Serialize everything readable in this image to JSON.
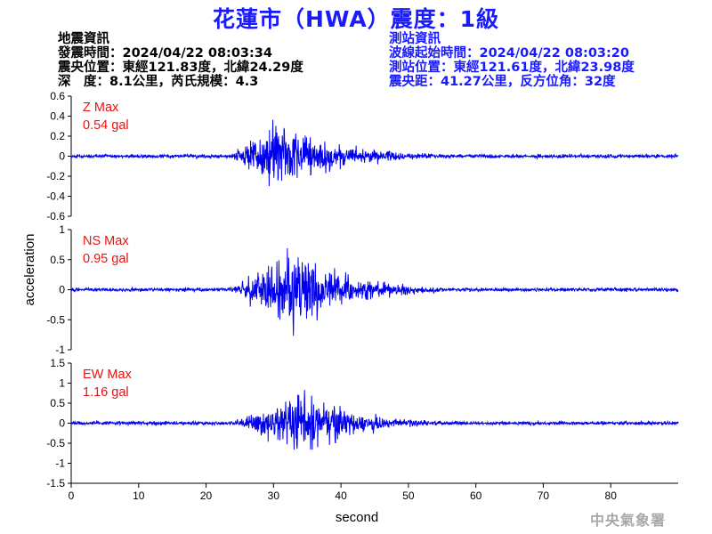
{
  "title": "花蓮市（HWA）震度：1級",
  "quake_info": {
    "heading": "地震資訊",
    "time": "發震時間：2024/04/22 08:03:34",
    "location": "震央位置：東經121.83度，北緯24.29度",
    "depth_magnitude": "深　度：8.1公里，芮氏規模：4.3"
  },
  "station_info": {
    "heading": "測站資訊",
    "wave_start": "波線起始時間：2024/04/22 08:03:20",
    "location": "測站位置：東經121.61度，北緯23.98度",
    "distance_azimuth": "震央距：41.27公里，反方位角：32度"
  },
  "watermark": "中央氣象署",
  "colors": {
    "title": "#1a1aff",
    "trace": "#0000ee",
    "max_label": "#ee1111"
  },
  "chart_data": {
    "type": "line",
    "xlabel": "second",
    "ylabel": "acceleration",
    "xlim": [
      0,
      90
    ],
    "x_ticks": [
      0,
      10,
      20,
      30,
      40,
      50,
      60,
      70,
      80
    ],
    "panels": [
      {
        "component": "Z",
        "max_label": "Z Max",
        "max_value": "0.54 gal",
        "ylim": [
          -0.6,
          0.6
        ],
        "y_ticks": [
          0.6,
          0.4,
          0.2,
          0,
          -0.2,
          -0.4,
          -0.6
        ],
        "peak_abs": 0.54,
        "noise_level": 0.012,
        "onset_s": 23.5,
        "peak_time_s": 31
      },
      {
        "component": "NS",
        "max_label": "NS Max",
        "max_value": "0.95 gal",
        "ylim": [
          -1,
          1
        ],
        "y_ticks": [
          1,
          0.5,
          0,
          -0.5,
          -1
        ],
        "peak_abs": 0.95,
        "noise_level": 0.02,
        "onset_s": 23.5,
        "peak_time_s": 33
      },
      {
        "component": "EW",
        "max_label": "EW Max",
        "max_value": "1.16 gal",
        "ylim": [
          -1.5,
          1.5
        ],
        "y_ticks": [
          1.5,
          1,
          0.5,
          0,
          -0.5,
          -1,
          -1.5
        ],
        "peak_abs": 1.16,
        "noise_level": 0.03,
        "onset_s": 23.5,
        "peak_time_s": 34
      }
    ]
  }
}
